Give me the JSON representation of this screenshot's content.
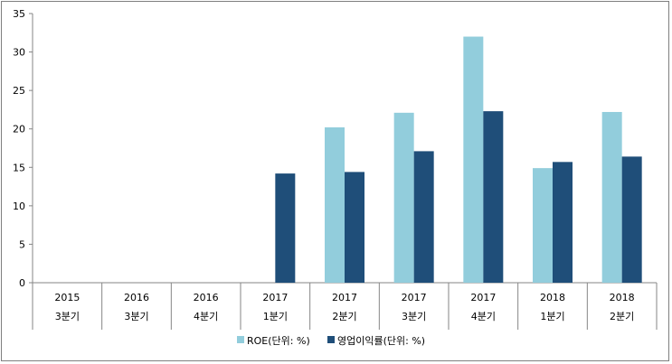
{
  "chart_data": {
    "type": "bar",
    "categories": [
      [
        "2015",
        "3분기"
      ],
      [
        "2016",
        "3분기"
      ],
      [
        "2016",
        "4분기"
      ],
      [
        "2017",
        "1분기"
      ],
      [
        "2017",
        "2분기"
      ],
      [
        "2017",
        "3분기"
      ],
      [
        "2017",
        "4분기"
      ],
      [
        "2018",
        "1분기"
      ],
      [
        "2018",
        "2분기"
      ]
    ],
    "series": [
      {
        "name": "ROE(단위: %)",
        "color": "#92cddc",
        "values": [
          null,
          null,
          null,
          null,
          20.2,
          22.1,
          32.0,
          14.9,
          22.2
        ]
      },
      {
        "name": "영업이익률(단위: %)",
        "color": "#1f4e79",
        "values": [
          null,
          null,
          null,
          14.2,
          14.4,
          17.1,
          22.3,
          15.7,
          16.4
        ]
      }
    ],
    "ylim": [
      0,
      35
    ],
    "yticks": [
      0,
      5,
      10,
      15,
      20,
      25,
      30,
      35
    ],
    "grid": false,
    "legend_position": "bottom"
  }
}
